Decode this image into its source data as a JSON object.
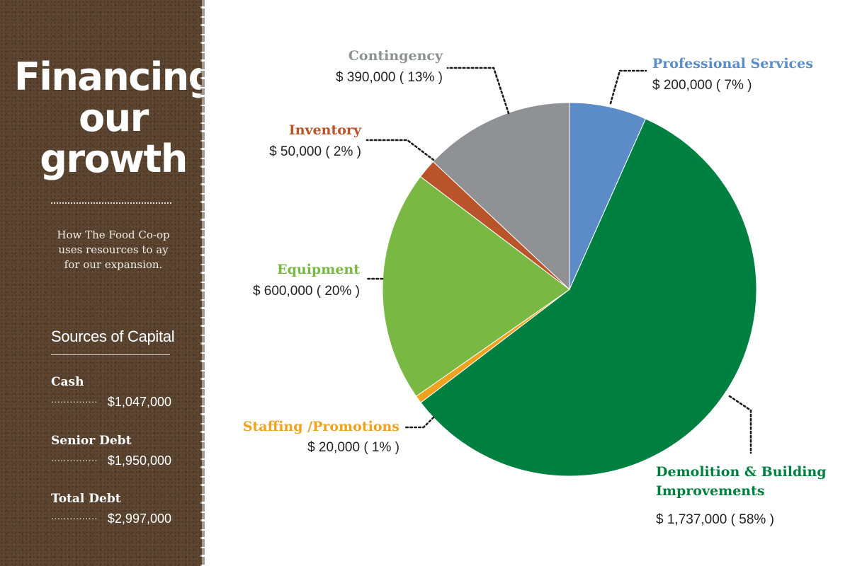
{
  "sidebar": {
    "title": "Financing\nour\ngrowth",
    "subtitle": "How The Food Co-op\nuses resources to ay\nfor our expansion.",
    "sources_title": "Sources of Capital",
    "capital": [
      {
        "label": "Cash",
        "leader": "...............",
        "value": "$1,047,000"
      },
      {
        "label": "Senior Debt",
        "leader": "...............",
        "value": "$1,950,000"
      },
      {
        "label": "Total Debt",
        "leader": "...............",
        "value": "$2,997,000"
      }
    ]
  },
  "chart_data": {
    "type": "pie",
    "start_angle_deg": 0,
    "direction": "clockwise",
    "slices": [
      {
        "name": "Professional Services",
        "value": 200000,
        "percent": 7,
        "value_label": "$ 200,000 ( 7% )",
        "color": "#5b8cc8"
      },
      {
        "name": "Demolition & Building Improvements",
        "name_lines": [
          "Demolition & Building",
          "Improvements"
        ],
        "value": 1737000,
        "percent": 58,
        "value_label": "$ 1,737,000 ( 58% )",
        "color": "#008040"
      },
      {
        "name": "Staffing /Promotions",
        "value": 20000,
        "percent": 1,
        "value_label": "$ 20,000 ( 1% )",
        "color": "#f0a21e"
      },
      {
        "name": "Equipment",
        "value": 600000,
        "percent": 20,
        "value_label": "$ 600,000 ( 20% )",
        "color": "#79b843"
      },
      {
        "name": "Inventory",
        "value": 50000,
        "percent": 2,
        "value_label": "$ 50,000 ( 2% )",
        "color": "#b8532a"
      },
      {
        "name": "Contingency",
        "value": 390000,
        "percent": 13,
        "value_label": "$ 390,000 ( 13% )",
        "color": "#8f9194"
      }
    ]
  }
}
